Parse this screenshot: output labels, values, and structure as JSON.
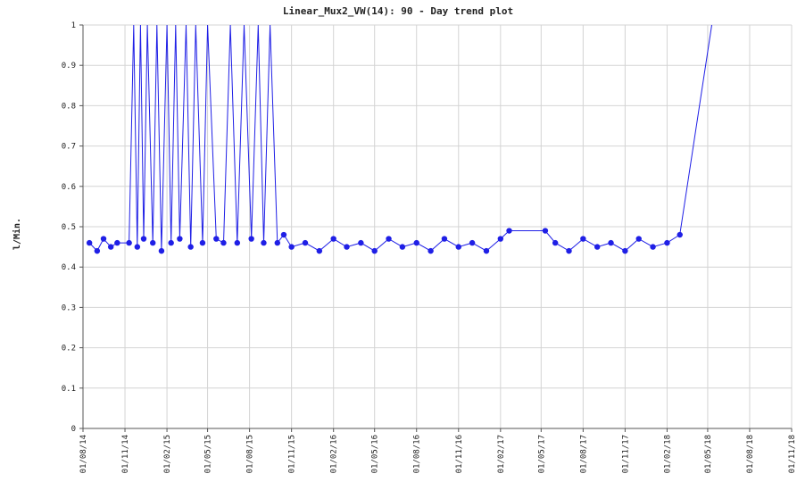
{
  "chart_data": {
    "type": "scatter",
    "title": "Linear_Mux2_VW(14): 90 - Day trend plot",
    "xlabel": "",
    "ylabel": "l/Min.",
    "ylim": [
      0,
      1
    ],
    "xlim": [
      "2014-08-01",
      "2018-11-01"
    ],
    "x_ticks": [
      "01/08/14",
      "01/11/14",
      "01/02/15",
      "01/05/15",
      "01/08/15",
      "01/11/15",
      "01/02/16",
      "01/05/16",
      "01/08/16",
      "01/11/16",
      "01/02/17",
      "01/05/17",
      "01/08/17",
      "01/11/17",
      "01/02/18",
      "01/05/18",
      "01/08/18",
      "01/11/18"
    ],
    "y_ticks": [
      "0",
      "0.1",
      "0.2",
      "0.3",
      "0.4",
      "0.5",
      "0.6",
      "0.7",
      "0.8",
      "0.9",
      "1"
    ],
    "grid": true,
    "colors": {
      "series": "#1f1fe6",
      "grid": "#d4d4d4",
      "axis": "#555555"
    },
    "series": [
      {
        "points": [
          [
            "2014-08-15",
            0.46
          ],
          [
            "2014-09-01",
            0.44
          ],
          [
            "2014-09-15",
            0.47
          ],
          [
            "2014-10-01",
            0.45
          ],
          [
            "2014-10-15",
            0.46
          ],
          [
            "2014-11-10",
            0.46
          ],
          [
            "2014-11-20",
            1.0
          ],
          [
            "2014-11-28",
            0.45
          ],
          [
            "2014-12-05",
            1.0
          ],
          [
            "2014-12-12",
            0.47
          ],
          [
            "2014-12-20",
            1.0
          ],
          [
            "2015-01-01",
            0.46
          ],
          [
            "2015-01-10",
            1.0
          ],
          [
            "2015-01-20",
            0.44
          ],
          [
            "2015-02-01",
            1.0
          ],
          [
            "2015-02-10",
            0.46
          ],
          [
            "2015-02-20",
            1.0
          ],
          [
            "2015-03-01",
            0.47
          ],
          [
            "2015-03-15",
            1.0
          ],
          [
            "2015-03-25",
            0.45
          ],
          [
            "2015-04-05",
            1.0
          ],
          [
            "2015-04-20",
            0.46
          ],
          [
            "2015-05-01",
            1.0
          ],
          [
            "2015-05-20",
            0.47
          ],
          [
            "2015-06-05",
            0.46
          ],
          [
            "2015-06-20",
            1.0
          ],
          [
            "2015-07-05",
            0.46
          ],
          [
            "2015-07-20",
            1.0
          ],
          [
            "2015-08-05",
            0.47
          ],
          [
            "2015-08-20",
            1.0
          ],
          [
            "2015-09-01",
            0.46
          ],
          [
            "2015-09-15",
            1.0
          ],
          [
            "2015-10-01",
            0.46
          ],
          [
            "2015-10-15",
            0.48
          ],
          [
            "2015-11-01",
            0.45
          ],
          [
            "2015-12-01",
            0.46
          ],
          [
            "2016-01-01",
            0.44
          ],
          [
            "2016-02-01",
            0.47
          ],
          [
            "2016-03-01",
            0.45
          ],
          [
            "2016-04-01",
            0.46
          ],
          [
            "2016-05-01",
            0.44
          ],
          [
            "2016-06-01",
            0.47
          ],
          [
            "2016-07-01",
            0.45
          ],
          [
            "2016-08-01",
            0.46
          ],
          [
            "2016-09-01",
            0.44
          ],
          [
            "2016-10-01",
            0.47
          ],
          [
            "2016-11-01",
            0.45
          ],
          [
            "2016-12-01",
            0.46
          ],
          [
            "2017-01-01",
            0.44
          ],
          [
            "2017-02-01",
            0.47
          ],
          [
            "2017-02-20",
            0.49
          ],
          [
            "2017-05-10",
            0.49
          ],
          [
            "2017-06-01",
            0.46
          ],
          [
            "2017-07-01",
            0.44
          ],
          [
            "2017-08-01",
            0.47
          ],
          [
            "2017-09-01",
            0.45
          ],
          [
            "2017-10-01",
            0.46
          ],
          [
            "2017-11-01",
            0.44
          ],
          [
            "2017-12-01",
            0.47
          ],
          [
            "2018-01-01",
            0.45
          ],
          [
            "2018-02-01",
            0.46
          ],
          [
            "2018-03-01",
            0.48
          ],
          [
            "2018-05-10",
            1.0
          ]
        ]
      }
    ]
  }
}
